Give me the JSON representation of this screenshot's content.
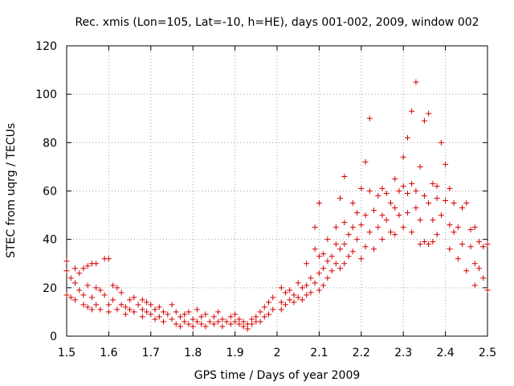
{
  "chart_data": {
    "type": "scatter",
    "title": "Rec. xmis (Lon=105, Lat=-10, h=HE), days 001-002, 2009, window 002",
    "xlabel": "GPS time / Days of year 2009",
    "ylabel": "STEC from uqrg / TECUs",
    "xlim": [
      1.5,
      2.5
    ],
    "ylim": [
      0,
      120
    ],
    "xticks": [
      "1.5",
      "1.6",
      "1.7",
      "1.8",
      "1.9",
      "2",
      "2.1",
      "2.2",
      "2.3",
      "2.4",
      "2.5"
    ],
    "yticks": [
      "0",
      "20",
      "40",
      "60",
      "80",
      "100",
      "120"
    ],
    "grid": true,
    "marker": "+",
    "color": "#d40000",
    "series": [
      {
        "name": "STEC",
        "points": [
          [
            1.5,
            31
          ],
          [
            1.5,
            27
          ],
          [
            1.5,
            17
          ],
          [
            1.51,
            24
          ],
          [
            1.51,
            16
          ],
          [
            1.52,
            28
          ],
          [
            1.52,
            22
          ],
          [
            1.52,
            15
          ],
          [
            1.53,
            26
          ],
          [
            1.53,
            19
          ],
          [
            1.54,
            28
          ],
          [
            1.54,
            17
          ],
          [
            1.54,
            13
          ],
          [
            1.55,
            29
          ],
          [
            1.55,
            21
          ],
          [
            1.55,
            12
          ],
          [
            1.56,
            30
          ],
          [
            1.56,
            16
          ],
          [
            1.56,
            11
          ],
          [
            1.57,
            30
          ],
          [
            1.57,
            20
          ],
          [
            1.57,
            13
          ],
          [
            1.58,
            19
          ],
          [
            1.58,
            11
          ],
          [
            1.59,
            32
          ],
          [
            1.59,
            17
          ],
          [
            1.6,
            32
          ],
          [
            1.6,
            13
          ],
          [
            1.6,
            10
          ],
          [
            1.61,
            21
          ],
          [
            1.61,
            15
          ],
          [
            1.62,
            20
          ],
          [
            1.62,
            11
          ],
          [
            1.63,
            18
          ],
          [
            1.63,
            13
          ],
          [
            1.64,
            12
          ],
          [
            1.64,
            9
          ],
          [
            1.65,
            15
          ],
          [
            1.65,
            11
          ],
          [
            1.66,
            16
          ],
          [
            1.66,
            10
          ],
          [
            1.67,
            13
          ],
          [
            1.68,
            15
          ],
          [
            1.68,
            11
          ],
          [
            1.68,
            8
          ],
          [
            1.69,
            14
          ],
          [
            1.69,
            10
          ],
          [
            1.7,
            13
          ],
          [
            1.7,
            9
          ],
          [
            1.71,
            11
          ],
          [
            1.71,
            7
          ],
          [
            1.72,
            12
          ],
          [
            1.72,
            8
          ],
          [
            1.73,
            10
          ],
          [
            1.73,
            6
          ],
          [
            1.74,
            9
          ],
          [
            1.75,
            13
          ],
          [
            1.75,
            7
          ],
          [
            1.76,
            10
          ],
          [
            1.76,
            5
          ],
          [
            1.77,
            8
          ],
          [
            1.77,
            4
          ],
          [
            1.78,
            6
          ],
          [
            1.78,
            9
          ],
          [
            1.79,
            10
          ],
          [
            1.79,
            5
          ],
          [
            1.8,
            7
          ],
          [
            1.8,
            4
          ],
          [
            1.81,
            11
          ],
          [
            1.81,
            6
          ],
          [
            1.82,
            8
          ],
          [
            1.82,
            5
          ],
          [
            1.83,
            9
          ],
          [
            1.83,
            4
          ],
          [
            1.84,
            6
          ],
          [
            1.85,
            8
          ],
          [
            1.85,
            5
          ],
          [
            1.86,
            10
          ],
          [
            1.86,
            6
          ],
          [
            1.87,
            7
          ],
          [
            1.87,
            4
          ],
          [
            1.88,
            6
          ],
          [
            1.89,
            8
          ],
          [
            1.89,
            5
          ],
          [
            1.9,
            9
          ],
          [
            1.9,
            6
          ],
          [
            1.91,
            7
          ],
          [
            1.91,
            5
          ],
          [
            1.92,
            6
          ],
          [
            1.92,
            4
          ],
          [
            1.93,
            5
          ],
          [
            1.93,
            3
          ],
          [
            1.94,
            7
          ],
          [
            1.94,
            5
          ],
          [
            1.95,
            8
          ],
          [
            1.95,
            6
          ],
          [
            1.96,
            10
          ],
          [
            1.96,
            6
          ],
          [
            1.97,
            12
          ],
          [
            1.97,
            8
          ],
          [
            1.98,
            14
          ],
          [
            1.98,
            9
          ],
          [
            1.99,
            16
          ],
          [
            1.99,
            11
          ],
          [
            2.01,
            20
          ],
          [
            2.01,
            14
          ],
          [
            2.01,
            11
          ],
          [
            2.02,
            18
          ],
          [
            2.02,
            13
          ],
          [
            2.03,
            19
          ],
          [
            2.03,
            15
          ],
          [
            2.04,
            17
          ],
          [
            2.04,
            14
          ],
          [
            2.05,
            22
          ],
          [
            2.05,
            16
          ],
          [
            2.06,
            20
          ],
          [
            2.06,
            15
          ],
          [
            2.07,
            30
          ],
          [
            2.07,
            21
          ],
          [
            2.07,
            17
          ],
          [
            2.08,
            24
          ],
          [
            2.08,
            18
          ],
          [
            2.09,
            36
          ],
          [
            2.09,
            22
          ],
          [
            2.09,
            45
          ],
          [
            2.1,
            55
          ],
          [
            2.1,
            33
          ],
          [
            2.1,
            26
          ],
          [
            2.1,
            19
          ],
          [
            2.11,
            34
          ],
          [
            2.11,
            28
          ],
          [
            2.11,
            21
          ],
          [
            2.12,
            40
          ],
          [
            2.12,
            31
          ],
          [
            2.12,
            24
          ],
          [
            2.13,
            33
          ],
          [
            2.13,
            27
          ],
          [
            2.14,
            45
          ],
          [
            2.14,
            38
          ],
          [
            2.14,
            30
          ],
          [
            2.15,
            57
          ],
          [
            2.15,
            36
          ],
          [
            2.15,
            28
          ],
          [
            2.16,
            66
          ],
          [
            2.16,
            47
          ],
          [
            2.16,
            38
          ],
          [
            2.16,
            30
          ],
          [
            2.17,
            42
          ],
          [
            2.17,
            33
          ],
          [
            2.18,
            55
          ],
          [
            2.18,
            45
          ],
          [
            2.18,
            35
          ],
          [
            2.19,
            51
          ],
          [
            2.19,
            40
          ],
          [
            2.2,
            61
          ],
          [
            2.2,
            46
          ],
          [
            2.2,
            32
          ],
          [
            2.21,
            72
          ],
          [
            2.21,
            50
          ],
          [
            2.21,
            37
          ],
          [
            2.22,
            90
          ],
          [
            2.22,
            60
          ],
          [
            2.22,
            43
          ],
          [
            2.23,
            52
          ],
          [
            2.23,
            36
          ],
          [
            2.24,
            58
          ],
          [
            2.24,
            45
          ],
          [
            2.25,
            61
          ],
          [
            2.25,
            50
          ],
          [
            2.25,
            40
          ],
          [
            2.26,
            59
          ],
          [
            2.26,
            48
          ],
          [
            2.27,
            55
          ],
          [
            2.27,
            43
          ],
          [
            2.28,
            65
          ],
          [
            2.28,
            53
          ],
          [
            2.28,
            42
          ],
          [
            2.29,
            60
          ],
          [
            2.29,
            50
          ],
          [
            2.3,
            74
          ],
          [
            2.3,
            62
          ],
          [
            2.3,
            45
          ],
          [
            2.31,
            82
          ],
          [
            2.31,
            59
          ],
          [
            2.31,
            51
          ],
          [
            2.32,
            93
          ],
          [
            2.32,
            63
          ],
          [
            2.32,
            43
          ],
          [
            2.33,
            105
          ],
          [
            2.33,
            60
          ],
          [
            2.33,
            53
          ],
          [
            2.34,
            70
          ],
          [
            2.34,
            48
          ],
          [
            2.34,
            38
          ],
          [
            2.35,
            89
          ],
          [
            2.35,
            58
          ],
          [
            2.35,
            39
          ],
          [
            2.36,
            92
          ],
          [
            2.36,
            55
          ],
          [
            2.36,
            38
          ],
          [
            2.37,
            63
          ],
          [
            2.37,
            48
          ],
          [
            2.37,
            39
          ],
          [
            2.38,
            62
          ],
          [
            2.38,
            57
          ],
          [
            2.38,
            42
          ],
          [
            2.39,
            80
          ],
          [
            2.39,
            50
          ],
          [
            2.4,
            71
          ],
          [
            2.4,
            56
          ],
          [
            2.41,
            61
          ],
          [
            2.41,
            46
          ],
          [
            2.41,
            36
          ],
          [
            2.42,
            55
          ],
          [
            2.42,
            43
          ],
          [
            2.43,
            45
          ],
          [
            2.43,
            32
          ],
          [
            2.44,
            53
          ],
          [
            2.44,
            38
          ],
          [
            2.45,
            55
          ],
          [
            2.45,
            27
          ],
          [
            2.46,
            37
          ],
          [
            2.46,
            44
          ],
          [
            2.47,
            30
          ],
          [
            2.47,
            45
          ],
          [
            2.47,
            21
          ],
          [
            2.48,
            39
          ],
          [
            2.48,
            28
          ],
          [
            2.49,
            37
          ],
          [
            2.49,
            24
          ],
          [
            2.5,
            38
          ],
          [
            2.5,
            19
          ]
        ]
      }
    ]
  }
}
